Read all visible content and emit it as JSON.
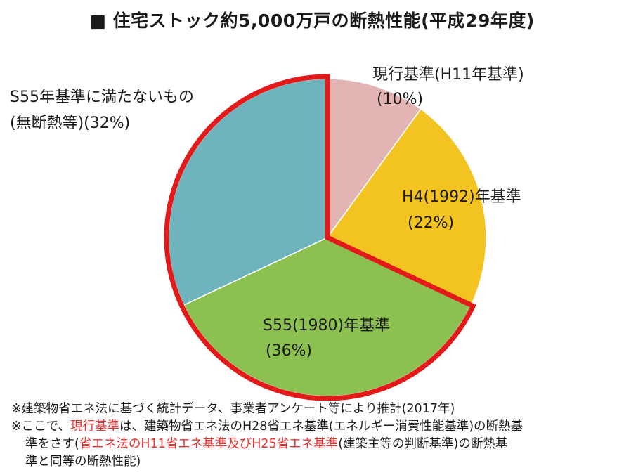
{
  "title": "■ 住宅ストック約5,000万戸の断熱性能(平成29年度)",
  "chart_data": {
    "type": "pie",
    "title": "■ 住宅ストック約5,000万戸の断熱性能(平成29年度)",
    "unit": "%",
    "slices": [
      {
        "name": "現行基準(H11年基準)",
        "pct_label": "(10%)",
        "value": 10,
        "color": "#e3b4b4"
      },
      {
        "name": "H4(1992)年基準",
        "pct_label": "(22%)",
        "value": 22,
        "color": "#f2c321"
      },
      {
        "name": "S55(1980)年基準",
        "pct_label": "(36%)",
        "value": 36,
        "color": "#8cc152"
      },
      {
        "name": "S55年基準に満たないもの",
        "name2": "(無断熱等)(32%)",
        "value": 32,
        "color": "#6fb4bd"
      }
    ],
    "start_angle_deg": 0,
    "direction": "clockwise",
    "highlight": {
      "slices": [
        2,
        3
      ],
      "outline_color": "#e21a1a"
    }
  },
  "notes": {
    "line1": "※建築物省エネ法に基づく統計データ、事業者アンケート等により推計(2017年)",
    "line2_a": "※ここで、",
    "line2_red": "現行基準",
    "line2_b": "は、建築物省エネ法のH28省エネ基準(エネルギー消費性能基準)の断熱基",
    "line3_a": "準をさす(",
    "line3_red": "省エネ法のH11省エネ基準及びH25省エネ基準",
    "line3_b": "(建築主等の判断基準)の断熱基",
    "line4": "準と同等の断熱性能)"
  }
}
